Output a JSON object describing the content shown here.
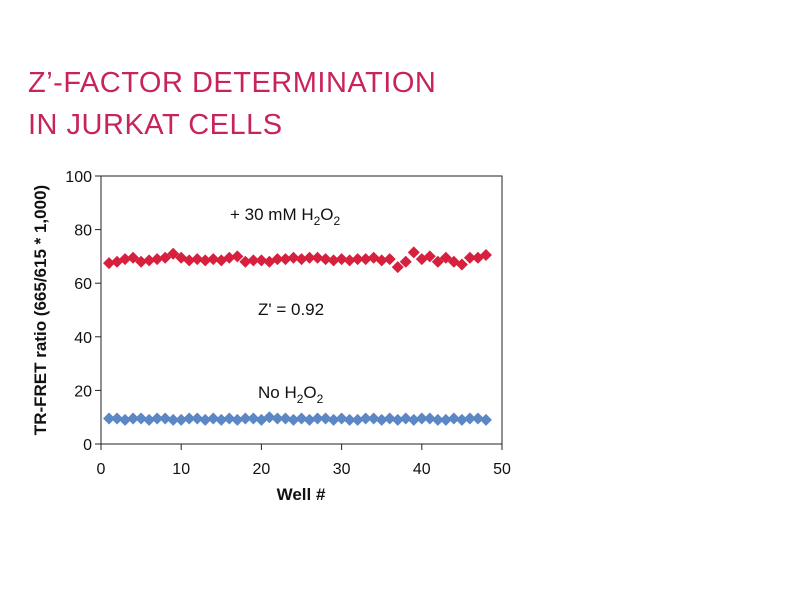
{
  "title": {
    "line1": "Z’-FACTOR DETERMINATION",
    "line2": "IN JURKAT CELLS"
  },
  "colors": {
    "title": "#c8245a",
    "treated": "#d6203d",
    "untreated": "#5b87c4"
  },
  "chart_data": {
    "type": "scatter",
    "xlabel": "Well #",
    "ylabel": "TR-FRET ratio (665/615 * 1,000)",
    "xlim": [
      0,
      50
    ],
    "ylim": [
      0,
      100
    ],
    "xticks": [
      "0",
      "10",
      "20",
      "30",
      "40",
      "50"
    ],
    "yticks": [
      "0",
      "20",
      "40",
      "60",
      "80",
      "100"
    ],
    "grid": false,
    "marker": "diamond",
    "annotations": {
      "treated": {
        "prefix": "+ 30 mM H",
        "s1": "2",
        "mid": "O",
        "s2": "2"
      },
      "zfactor": "Z' = 0.92",
      "untreated": {
        "prefix": "No H",
        "s1": "2",
        "mid": "O",
        "s2": "2"
      }
    },
    "series": [
      {
        "key": "treated",
        "x": [
          1,
          2,
          3,
          4,
          5,
          6,
          7,
          8,
          9,
          10,
          11,
          12,
          13,
          14,
          15,
          16,
          17,
          18,
          19,
          20,
          21,
          22,
          23,
          24,
          25,
          26,
          27,
          28,
          29,
          30,
          31,
          32,
          33,
          34,
          35,
          36,
          37,
          38,
          39,
          40,
          41,
          42,
          43,
          44,
          45,
          46,
          47,
          48
        ],
        "y": [
          67.5,
          68,
          69,
          69.5,
          68,
          68.5,
          69,
          69.5,
          71,
          69.5,
          68.5,
          69,
          68.5,
          69,
          68.5,
          69.5,
          70,
          68,
          68.5,
          68.5,
          68,
          69,
          69,
          69.5,
          69,
          69.5,
          69.5,
          69,
          68.5,
          69,
          68.5,
          69,
          69,
          69.5,
          68.5,
          69,
          66,
          68,
          71.5,
          69,
          70,
          68,
          69.5,
          68,
          67,
          69.5,
          69.5,
          70.5
        ]
      },
      {
        "key": "untreated",
        "x": [
          1,
          2,
          3,
          4,
          5,
          6,
          7,
          8,
          9,
          10,
          11,
          12,
          13,
          14,
          15,
          16,
          17,
          18,
          19,
          20,
          21,
          22,
          23,
          24,
          25,
          26,
          27,
          28,
          29,
          30,
          31,
          32,
          33,
          34,
          35,
          36,
          37,
          38,
          39,
          40,
          41,
          42,
          43,
          44,
          45,
          46,
          47,
          48
        ],
        "y": [
          9.5,
          9.5,
          9,
          9.5,
          9.5,
          9,
          9.5,
          9.5,
          9,
          9,
          9.5,
          9.5,
          9,
          9.5,
          9,
          9.5,
          9,
          9.5,
          9.5,
          9,
          10,
          9.5,
          9.5,
          9,
          9.5,
          9,
          9.5,
          9.5,
          9,
          9.5,
          9,
          9,
          9.5,
          9.5,
          9,
          9.5,
          9,
          9.5,
          9,
          9.5,
          9.5,
          9,
          9,
          9.5,
          9,
          9.5,
          9.5,
          9
        ]
      }
    ]
  }
}
